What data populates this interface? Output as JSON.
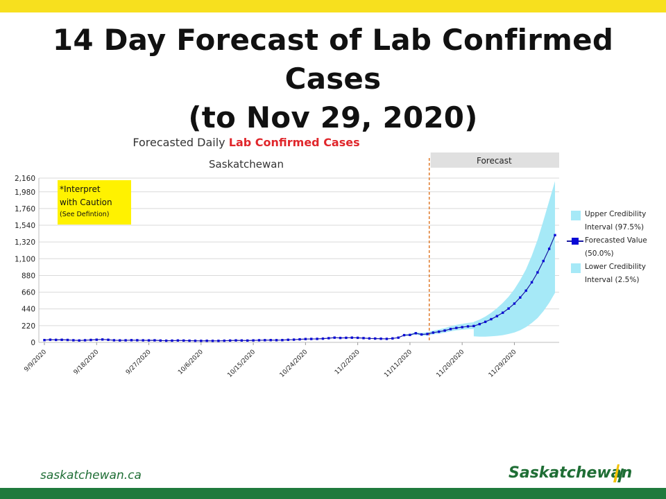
{
  "header": {
    "title_line1": "14 Day Forecast of Lab Confirmed Cases",
    "title_line2": "(to Nov 29, 2020)"
  },
  "chart_data": {
    "type": "line",
    "title_prefix": "Forecasted Daily",
    "title_highlight": "Lab Confirmed Cases",
    "subtitle": "Saskatchewan",
    "forecast_label": "Forecast",
    "x_start_date": "9/9/2020",
    "x_tick_labels": [
      "9/9/2020",
      "9/18/2020",
      "9/27/2020",
      "10/6/2020",
      "10/15/2020",
      "10/24/2020",
      "11/2/2020",
      "11/11/2020",
      "11/20/2020",
      "11/29/2020"
    ],
    "y_tick_labels": [
      "0",
      "220",
      "440",
      "660",
      "880",
      "1,100",
      "1,320",
      "1,540",
      "1,760",
      "1,980",
      "2,160"
    ],
    "ylim": [
      0,
      2160
    ],
    "forecast_start_date": "11/16/2020",
    "grid": true,
    "legend_position": "right",
    "series": [
      {
        "name": "Forecasted Value (50.0%)",
        "color": "#1a1aa0",
        "values": [
          30,
          35,
          33,
          34,
          32,
          28,
          25,
          28,
          32,
          35,
          38,
          34,
          28,
          26,
          27,
          29,
          28,
          27,
          26,
          27,
          24,
          22,
          23,
          25,
          24,
          22,
          21,
          20,
          21,
          20,
          20,
          22,
          24,
          26,
          25,
          24,
          26,
          28,
          29,
          30,
          29,
          30,
          34,
          36,
          40,
          44,
          45,
          46,
          49,
          55,
          62,
          58,
          60,
          62,
          60,
          56,
          52,
          50,
          48,
          46,
          52,
          62,
          95,
          98,
          120,
          104,
          110,
          128,
          140,
          155,
          175,
          190,
          200,
          210,
          215,
          240,
          270,
          305,
          345,
          390,
          445,
          510,
          590,
          680,
          790,
          920,
          1070,
          1230,
          1410
        ]
      },
      {
        "name": "Upper Credibility Interval (97.5%)",
        "color": "#a6e9f7",
        "forecast_values": [
          270,
          300,
          340,
          390,
          450,
          520,
          600,
          700,
          820,
          960,
          1140,
          1350,
          1600,
          1860,
          2120
        ]
      },
      {
        "name": "Lower Credibility Interval (2.5%)",
        "color": "#a6e9f7",
        "forecast_values": [
          80,
          75,
          75,
          80,
          85,
          95,
          110,
          130,
          160,
          200,
          255,
          320,
          410,
          520,
          650
        ]
      }
    ]
  },
  "caution_box": {
    "line1": "*Interpret",
    "line2": "with Caution",
    "line3": "(See Defintion)"
  },
  "legend": {
    "upper_line1": "Upper Credibility",
    "upper_line2": "Interval (97.5%)",
    "forecast_line1": "Forecasted Value",
    "forecast_line2": "(50.0%)",
    "lower_line1": "Lower Credibility",
    "lower_line2": "Interval (2.5%)"
  },
  "footer": {
    "website": "saskatchewan.ca",
    "brand": "Saskatchewan"
  },
  "colors": {
    "top_bar": "#f7e01e",
    "bottom_bar": "#1f7a3c",
    "highlight_red": "#e0262b",
    "band": "#a6e9f7",
    "line": "#1a1aa0",
    "forecast_divider": "#e07a2a"
  }
}
